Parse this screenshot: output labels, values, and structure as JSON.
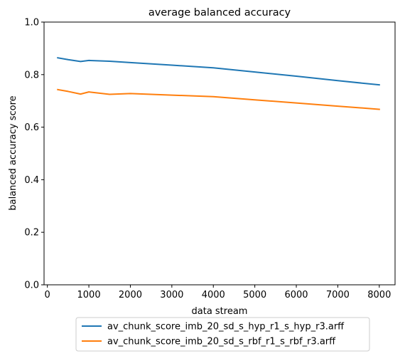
{
  "chart_data": {
    "type": "line",
    "title": "average balanced accuracy",
    "xlabel": "data stream",
    "ylabel": "balanced accuracy score",
    "xlim": [
      -80,
      8380
    ],
    "ylim": [
      0,
      1.0
    ],
    "xticks": [
      0,
      1000,
      2000,
      3000,
      4000,
      5000,
      6000,
      7000,
      8000
    ],
    "yticks": [
      0.0,
      0.2,
      0.4,
      0.6,
      0.8,
      1.0
    ],
    "xtick_labels": [
      "0",
      "1000",
      "2000",
      "3000",
      "4000",
      "5000",
      "6000",
      "7000",
      "8000"
    ],
    "ytick_labels": [
      "0.0",
      "0.2",
      "0.4",
      "0.6",
      "0.8",
      "1.0"
    ],
    "grid": false,
    "legend_position": "below",
    "series": [
      {
        "name": "av_chunk_score_imb_20_sd_s_hyp_r1_s_hyp_r3.arff",
        "color": "#1f77b4",
        "x": [
          250,
          500,
          800,
          1000,
          1500,
          2000,
          3000,
          4000,
          5000,
          6000,
          7000,
          8000
        ],
        "y": [
          0.864,
          0.857,
          0.85,
          0.854,
          0.851,
          0.846,
          0.836,
          0.826,
          0.81,
          0.794,
          0.777,
          0.761
        ]
      },
      {
        "name": "av_chunk_score_imb_20_sd_s_rbf_r1_s_rbf_r3.arff",
        "color": "#ff7f0e",
        "x": [
          250,
          500,
          800,
          1000,
          1500,
          2000,
          3000,
          4000,
          5000,
          6000,
          7000,
          8000
        ],
        "y": [
          0.743,
          0.736,
          0.726,
          0.734,
          0.725,
          0.728,
          0.722,
          0.716,
          0.704,
          0.692,
          0.68,
          0.668
        ]
      }
    ]
  }
}
